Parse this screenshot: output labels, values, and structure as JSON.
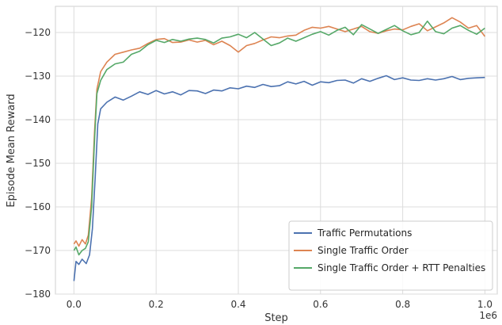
{
  "chart_data": {
    "type": "line",
    "xlabel": "Step",
    "ylabel": "Episode Mean Reward",
    "x_offset_label": "1e6",
    "xlim": [
      -0.045,
      1.03
    ],
    "ylim": [
      -180,
      -114
    ],
    "xticks": [
      0.0,
      0.2,
      0.4,
      0.6,
      0.8,
      1.0
    ],
    "xtick_labels": [
      "0.0",
      "0.2",
      "0.4",
      "0.6",
      "0.8",
      "1.0"
    ],
    "yticks": [
      -180,
      -170,
      -160,
      -150,
      -140,
      -130,
      -120
    ],
    "ytick_labels": [
      "-180",
      "-170",
      "-160",
      "-150",
      "-140",
      "-130",
      "-120"
    ],
    "grid": true,
    "legend_position": "bottom-right",
    "series": [
      {
        "name": "Traffic Permutations",
        "color": "#4c72b0",
        "points": [
          [
            0.0,
            -177.0
          ],
          [
            0.005,
            -172.5
          ],
          [
            0.012,
            -173.2
          ],
          [
            0.02,
            -172.0
          ],
          [
            0.03,
            -173.0
          ],
          [
            0.038,
            -171.0
          ],
          [
            0.045,
            -165.0
          ],
          [
            0.052,
            -153.0
          ],
          [
            0.058,
            -141.0
          ],
          [
            0.065,
            -137.5
          ],
          [
            0.08,
            -136.0
          ],
          [
            0.1,
            -134.8
          ],
          [
            0.12,
            -135.5
          ],
          [
            0.14,
            -134.6
          ],
          [
            0.16,
            -133.6
          ],
          [
            0.18,
            -134.2
          ],
          [
            0.2,
            -133.3
          ],
          [
            0.22,
            -134.1
          ],
          [
            0.24,
            -133.6
          ],
          [
            0.26,
            -134.3
          ],
          [
            0.28,
            -133.3
          ],
          [
            0.3,
            -133.4
          ],
          [
            0.32,
            -134.0
          ],
          [
            0.34,
            -133.2
          ],
          [
            0.36,
            -133.4
          ],
          [
            0.38,
            -132.7
          ],
          [
            0.4,
            -132.9
          ],
          [
            0.42,
            -132.3
          ],
          [
            0.44,
            -132.6
          ],
          [
            0.46,
            -131.9
          ],
          [
            0.48,
            -132.4
          ],
          [
            0.5,
            -132.2
          ],
          [
            0.52,
            -131.3
          ],
          [
            0.54,
            -131.8
          ],
          [
            0.56,
            -131.2
          ],
          [
            0.58,
            -132.1
          ],
          [
            0.6,
            -131.3
          ],
          [
            0.62,
            -131.5
          ],
          [
            0.64,
            -131.0
          ],
          [
            0.66,
            -130.9
          ],
          [
            0.68,
            -131.6
          ],
          [
            0.7,
            -130.6
          ],
          [
            0.72,
            -131.2
          ],
          [
            0.74,
            -130.5
          ],
          [
            0.76,
            -129.9
          ],
          [
            0.78,
            -130.8
          ],
          [
            0.8,
            -130.4
          ],
          [
            0.82,
            -130.9
          ],
          [
            0.84,
            -131.0
          ],
          [
            0.86,
            -130.6
          ],
          [
            0.88,
            -130.9
          ],
          [
            0.9,
            -130.6
          ],
          [
            0.92,
            -130.1
          ],
          [
            0.94,
            -130.8
          ],
          [
            0.96,
            -130.5
          ],
          [
            0.98,
            -130.4
          ],
          [
            1.0,
            -130.3
          ]
        ]
      },
      {
        "name": "Single Traffic Order",
        "color": "#dd8452",
        "points": [
          [
            0.0,
            -168.5
          ],
          [
            0.005,
            -167.8
          ],
          [
            0.012,
            -169.0
          ],
          [
            0.02,
            -167.5
          ],
          [
            0.028,
            -168.5
          ],
          [
            0.035,
            -166.5
          ],
          [
            0.043,
            -158.0
          ],
          [
            0.05,
            -143.0
          ],
          [
            0.056,
            -133.0
          ],
          [
            0.065,
            -129.0
          ],
          [
            0.08,
            -126.8
          ],
          [
            0.1,
            -125.0
          ],
          [
            0.12,
            -124.5
          ],
          [
            0.14,
            -124.0
          ],
          [
            0.16,
            -123.6
          ],
          [
            0.18,
            -122.5
          ],
          [
            0.2,
            -121.6
          ],
          [
            0.22,
            -121.4
          ],
          [
            0.24,
            -122.3
          ],
          [
            0.26,
            -122.2
          ],
          [
            0.28,
            -121.7
          ],
          [
            0.3,
            -122.2
          ],
          [
            0.32,
            -121.8
          ],
          [
            0.34,
            -122.8
          ],
          [
            0.36,
            -122.0
          ],
          [
            0.38,
            -123.0
          ],
          [
            0.4,
            -124.5
          ],
          [
            0.42,
            -123.0
          ],
          [
            0.44,
            -122.5
          ],
          [
            0.46,
            -121.7
          ],
          [
            0.48,
            -121.0
          ],
          [
            0.5,
            -121.2
          ],
          [
            0.52,
            -120.8
          ],
          [
            0.54,
            -120.6
          ],
          [
            0.56,
            -119.5
          ],
          [
            0.58,
            -118.8
          ],
          [
            0.6,
            -119.0
          ],
          [
            0.62,
            -118.6
          ],
          [
            0.64,
            -119.2
          ],
          [
            0.66,
            -119.8
          ],
          [
            0.68,
            -119.2
          ],
          [
            0.7,
            -118.6
          ],
          [
            0.72,
            -119.8
          ],
          [
            0.74,
            -120.2
          ],
          [
            0.76,
            -119.6
          ],
          [
            0.78,
            -119.2
          ],
          [
            0.8,
            -119.4
          ],
          [
            0.82,
            -118.6
          ],
          [
            0.84,
            -118.0
          ],
          [
            0.86,
            -119.6
          ],
          [
            0.88,
            -118.7
          ],
          [
            0.9,
            -117.8
          ],
          [
            0.92,
            -116.6
          ],
          [
            0.94,
            -117.6
          ],
          [
            0.96,
            -119.0
          ],
          [
            0.98,
            -118.4
          ],
          [
            1.0,
            -120.9
          ]
        ]
      },
      {
        "name": "Single Traffic Order + RTT Penalties",
        "color": "#55a868",
        "points": [
          [
            0.0,
            -170.0
          ],
          [
            0.005,
            -169.2
          ],
          [
            0.012,
            -171.0
          ],
          [
            0.02,
            -170.0
          ],
          [
            0.028,
            -169.5
          ],
          [
            0.035,
            -168.0
          ],
          [
            0.043,
            -160.0
          ],
          [
            0.05,
            -145.0
          ],
          [
            0.056,
            -134.0
          ],
          [
            0.065,
            -131.0
          ],
          [
            0.08,
            -128.5
          ],
          [
            0.1,
            -127.2
          ],
          [
            0.12,
            -126.8
          ],
          [
            0.14,
            -125.0
          ],
          [
            0.16,
            -124.3
          ],
          [
            0.18,
            -122.8
          ],
          [
            0.2,
            -121.8
          ],
          [
            0.22,
            -122.3
          ],
          [
            0.24,
            -121.6
          ],
          [
            0.26,
            -122.0
          ],
          [
            0.28,
            -121.5
          ],
          [
            0.3,
            -121.3
          ],
          [
            0.32,
            -121.6
          ],
          [
            0.34,
            -122.4
          ],
          [
            0.36,
            -121.3
          ],
          [
            0.38,
            -121.0
          ],
          [
            0.4,
            -120.4
          ],
          [
            0.42,
            -121.2
          ],
          [
            0.44,
            -120.0
          ],
          [
            0.46,
            -121.5
          ],
          [
            0.48,
            -123.0
          ],
          [
            0.5,
            -122.4
          ],
          [
            0.52,
            -121.3
          ],
          [
            0.54,
            -122.0
          ],
          [
            0.56,
            -121.2
          ],
          [
            0.58,
            -120.4
          ],
          [
            0.6,
            -119.8
          ],
          [
            0.62,
            -120.6
          ],
          [
            0.64,
            -119.5
          ],
          [
            0.66,
            -118.8
          ],
          [
            0.68,
            -120.5
          ],
          [
            0.7,
            -118.2
          ],
          [
            0.72,
            -119.2
          ],
          [
            0.74,
            -120.2
          ],
          [
            0.76,
            -119.3
          ],
          [
            0.78,
            -118.4
          ],
          [
            0.8,
            -119.6
          ],
          [
            0.82,
            -120.5
          ],
          [
            0.84,
            -120.0
          ],
          [
            0.86,
            -117.4
          ],
          [
            0.88,
            -119.8
          ],
          [
            0.9,
            -120.3
          ],
          [
            0.92,
            -119.0
          ],
          [
            0.94,
            -118.4
          ],
          [
            0.96,
            -119.5
          ],
          [
            0.98,
            -120.4
          ],
          [
            1.0,
            -119.0
          ]
        ]
      }
    ]
  }
}
